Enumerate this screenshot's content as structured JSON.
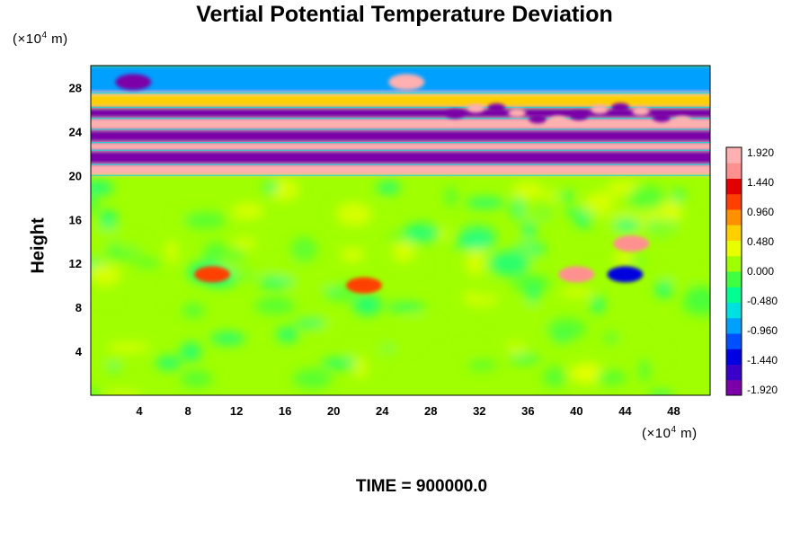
{
  "title": "Vertial Potential Temperature Deviation",
  "footer": "TIME = 900000.0",
  "chart_data": {
    "type": "heatmap",
    "title": "Vertial Potential Temperature Deviation",
    "ylabel": "Height",
    "xunit": {
      "prefix": "(×10",
      "exp": "4",
      "suffix": " m)"
    },
    "yunit": {
      "prefix": "(×10",
      "exp": "4",
      "suffix": " m)"
    },
    "xlim": [
      0,
      51
    ],
    "ylim": [
      0,
      30
    ],
    "xticks": [
      "4",
      "8",
      "12",
      "16",
      "20",
      "24",
      "28",
      "32",
      "36",
      "40",
      "44",
      "48"
    ],
    "yticks": [
      "4",
      "8",
      "12",
      "16",
      "20",
      "24",
      "28"
    ],
    "colorbar": {
      "ticks": [
        "1.920",
        "1.440",
        "0.960",
        "0.480",
        "0.000",
        "-0.480",
        "-0.960",
        "-1.440",
        "-1.920"
      ],
      "range": [
        -1.92,
        1.92
      ],
      "colors": [
        "#7b00a8",
        "#3a00c8",
        "#0000e0",
        "#0050ff",
        "#00a0ff",
        "#00e0e0",
        "#00ff90",
        "#40ff40",
        "#a0ff00",
        "#e8ff00",
        "#ffd000",
        "#ff9000",
        "#ff4000",
        "#e00000",
        "#ff9090",
        "#ffb0b0"
      ]
    },
    "bands": [
      {
        "y": [
          20.0,
          21.0
        ],
        "value": 1.92
      },
      {
        "y": [
          21.0,
          22.3
        ],
        "value": -1.92
      },
      {
        "y": [
          22.3,
          23.0
        ],
        "value": 1.92
      },
      {
        "y": [
          23.0,
          24.2
        ],
        "value": -1.92
      },
      {
        "y": [
          24.2,
          25.2
        ],
        "value": 1.92
      },
      {
        "y": [
          25.2,
          26.2
        ],
        "value": -1.92
      },
      {
        "y": [
          26.2,
          27.5
        ],
        "value": 0.48
      },
      {
        "y": [
          27.5,
          30.0
        ],
        "value": -0.96
      }
    ],
    "features": [
      {
        "x": 3.5,
        "y": 28.5,
        "value": -1.92
      },
      {
        "x": 26.0,
        "y": 28.5,
        "value": 1.92
      },
      {
        "x": 22.5,
        "y": 10.0,
        "value": 0.96
      },
      {
        "x": 40.0,
        "y": 11.0,
        "value": 1.44
      },
      {
        "x": 44.5,
        "y": 13.8,
        "value": 1.44
      },
      {
        "x": 10.0,
        "y": 11.0,
        "value": 0.96
      },
      {
        "x": 44.0,
        "y": 11.0,
        "value": -1.44
      }
    ]
  }
}
